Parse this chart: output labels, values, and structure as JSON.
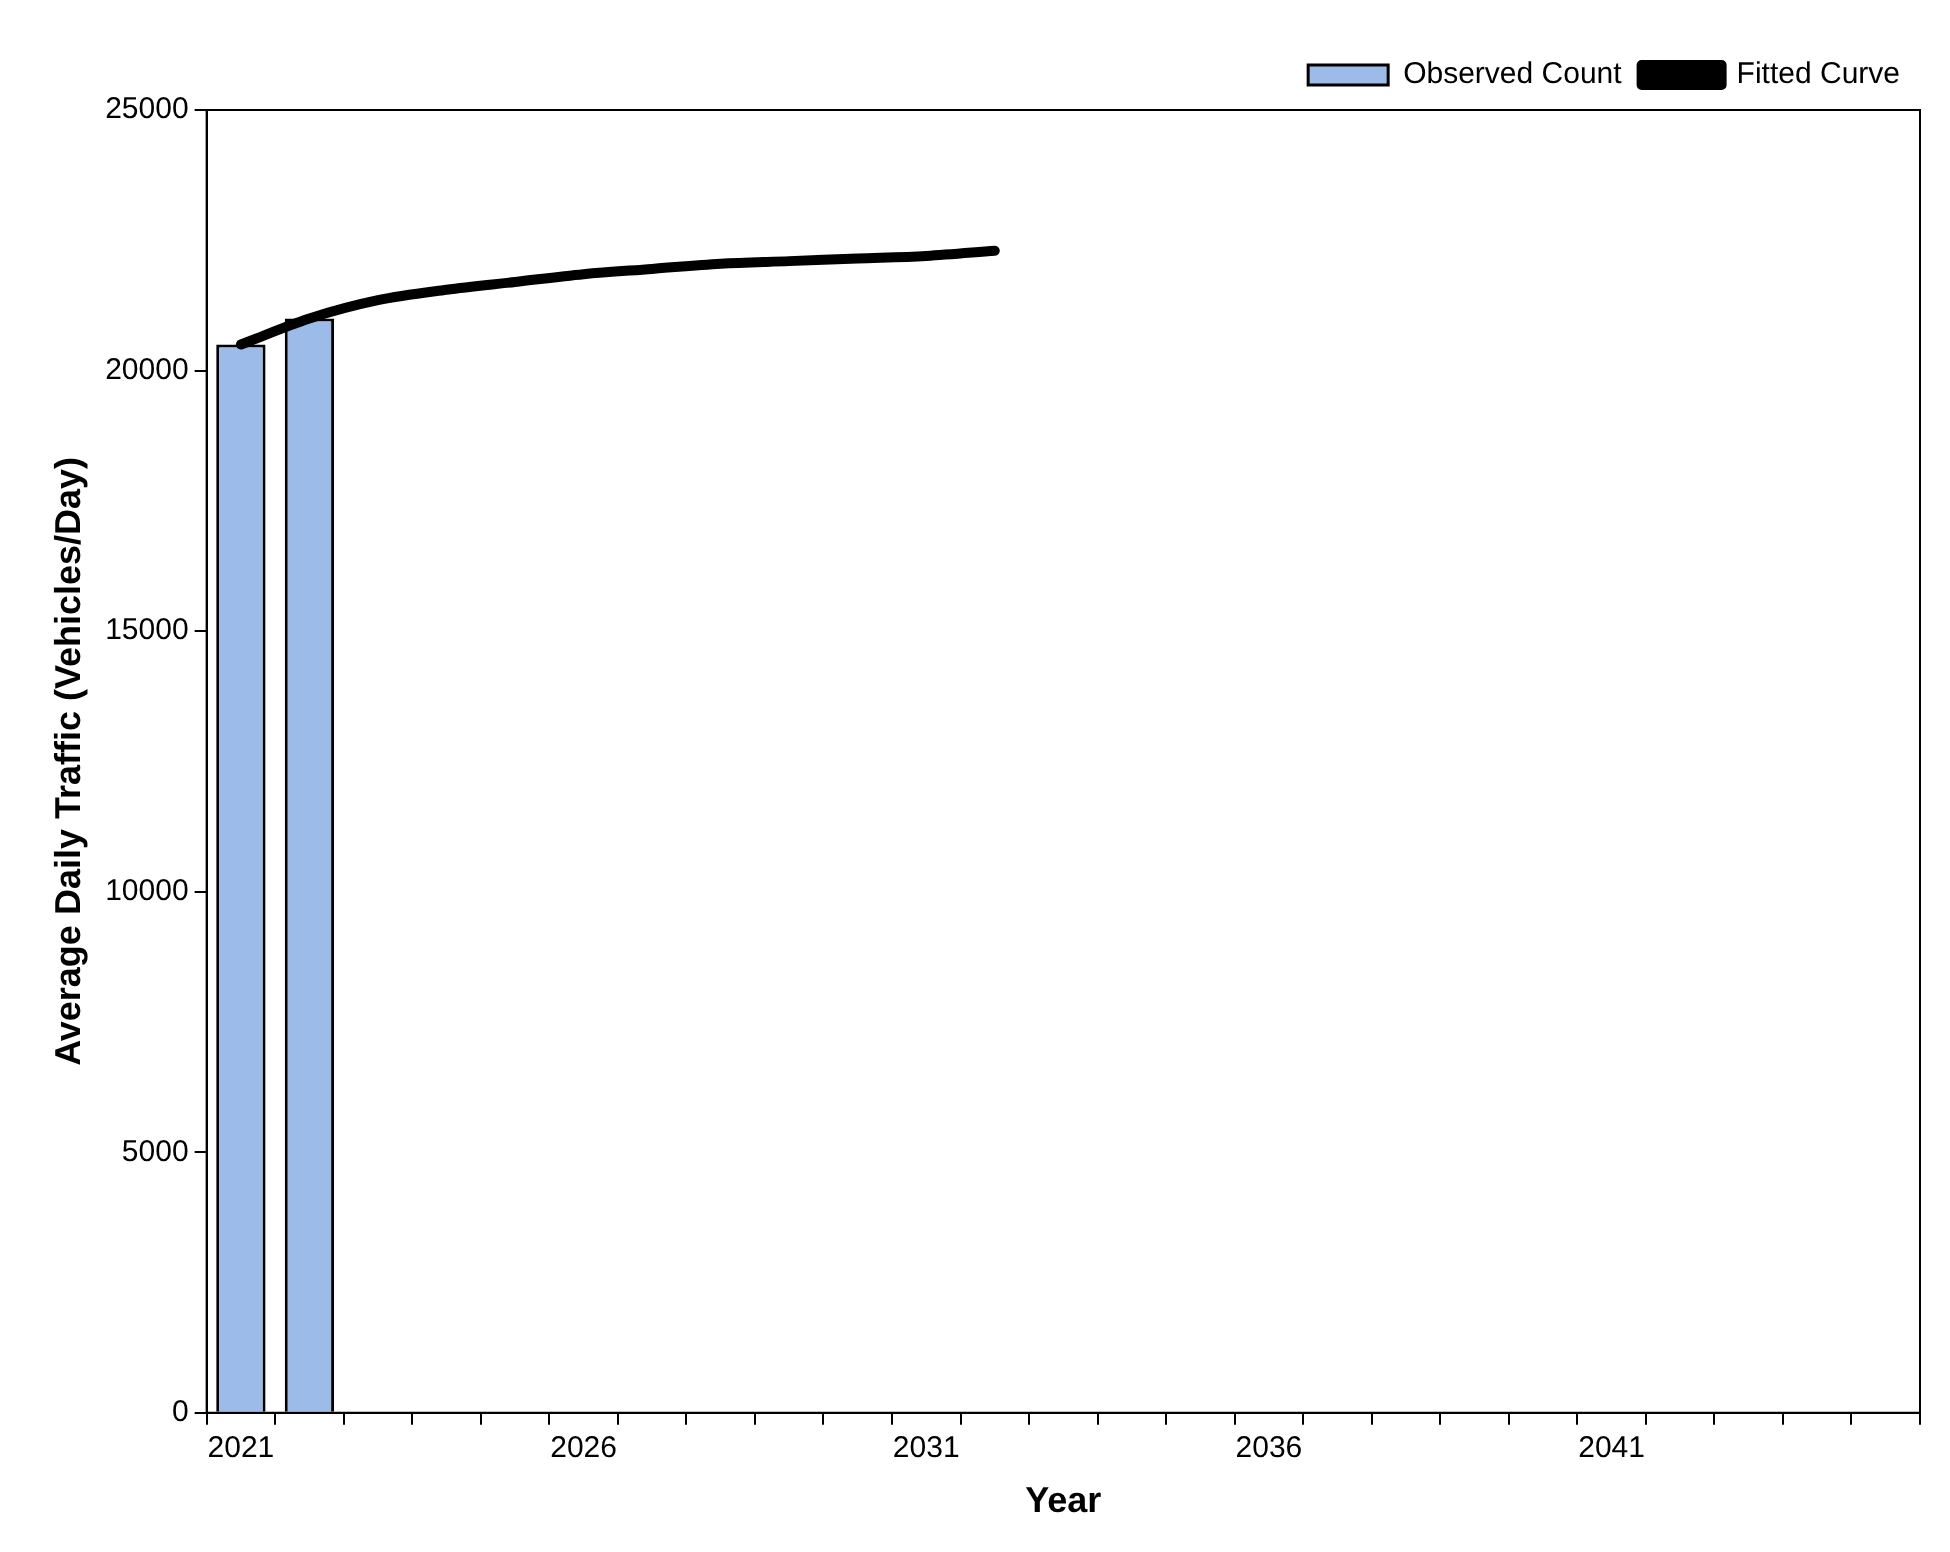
{
  "chart_data": {
    "type": "bar",
    "xlabel": "Year",
    "ylabel": "Average Daily Traffic (Vehicles/Day)",
    "categories": [
      "2021",
      null,
      null,
      null,
      null,
      "2026",
      null,
      null,
      null,
      null,
      "2031",
      null,
      null,
      null,
      null,
      "2036",
      null,
      null,
      null,
      null,
      "2041",
      null,
      null,
      null,
      null
    ],
    "series": [
      {
        "name": "Observed Count",
        "color": "#9dbbe8",
        "values": [
          20500,
          21000,
          null,
          null,
          null,
          null,
          null,
          null,
          null,
          null,
          null,
          null,
          null,
          null,
          null,
          null,
          null,
          null,
          null,
          null,
          null,
          null,
          null,
          null,
          null
        ]
      },
      {
        "name": "Fitted Curve",
        "type": "line",
        "color": "#000000",
        "values": [
          20500,
          21000,
          21350,
          21550,
          21700,
          21850,
          21950,
          22050,
          22100,
          22150,
          22200,
          22300,
          null,
          null,
          null,
          null,
          null,
          null,
          null,
          null,
          null,
          null,
          null,
          null,
          null
        ]
      }
    ],
    "ylim": [
      0,
      25000
    ],
    "yticks": [
      0,
      5000,
      10000,
      15000,
      20000,
      25000
    ],
    "grid": false,
    "legend": "top right",
    "marker": "none",
    "line_style": "solid"
  }
}
